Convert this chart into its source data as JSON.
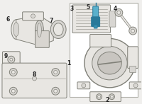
{
  "bg_color": "#f0efed",
  "white": "#ffffff",
  "outline_color": "#808078",
  "outline_thin": "#999990",
  "fill_light": "#e8e6e2",
  "fill_mid": "#d8d6d2",
  "fill_dark": "#c8c6c2",
  "highlight_blue": "#5ab0cc",
  "highlight_blue2": "#2a7a9a",
  "highlight_blue3": "#3890b0",
  "text_color": "#222222",
  "box_border": "#b0b0a8",
  "lw": 0.7,
  "lw_thin": 0.45,
  "lw_thick": 1.0
}
